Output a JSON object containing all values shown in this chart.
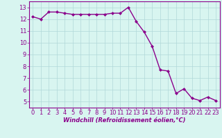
{
  "x": [
    0,
    1,
    2,
    3,
    4,
    5,
    6,
    7,
    8,
    9,
    10,
    11,
    12,
    13,
    14,
    15,
    16,
    17,
    18,
    19,
    20,
    21,
    22,
    23
  ],
  "y": [
    12.2,
    12.0,
    12.6,
    12.6,
    12.5,
    12.4,
    12.4,
    12.4,
    12.4,
    12.4,
    12.5,
    12.5,
    13.0,
    11.8,
    10.9,
    9.7,
    7.7,
    7.6,
    5.7,
    6.1,
    5.3,
    5.1,
    5.4,
    5.1
  ],
  "line_color": "#8B008B",
  "marker": "D",
  "marker_size": 2.0,
  "bg_color": "#d8f5f0",
  "grid_color": "#b0d8d8",
  "xlabel": "Windchill (Refroidissement éolien,°C)",
  "xlabel_color": "#8B008B",
  "tick_color": "#8B008B",
  "spine_color": "#8B008B",
  "xlim": [
    -0.5,
    23.5
  ],
  "ylim": [
    4.5,
    13.5
  ],
  "yticks": [
    5,
    6,
    7,
    8,
    9,
    10,
    11,
    12,
    13
  ],
  "xticks": [
    0,
    1,
    2,
    3,
    4,
    5,
    6,
    7,
    8,
    9,
    10,
    11,
    12,
    13,
    14,
    15,
    16,
    17,
    18,
    19,
    20,
    21,
    22,
    23
  ],
  "linewidth": 1.0,
  "tick_fontsize": 6,
  "xlabel_fontsize": 6
}
